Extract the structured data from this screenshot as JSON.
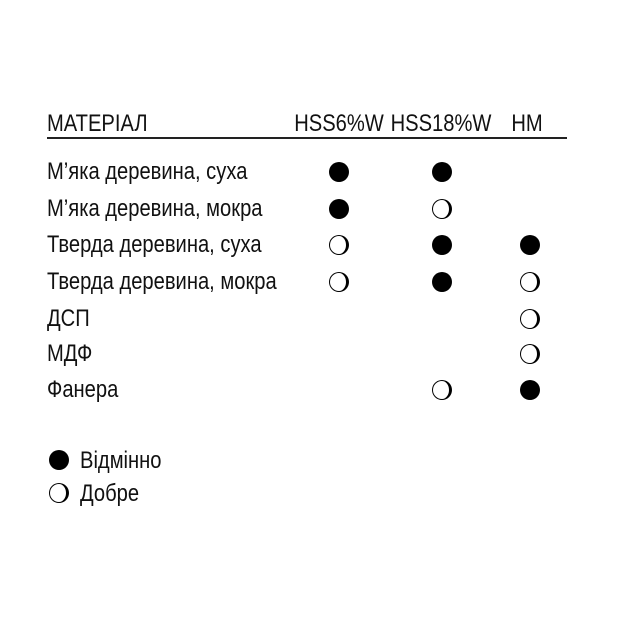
{
  "header": {
    "material": "МАТЕРІАЛ",
    "columns": [
      "HSS6%W",
      "HSS18%W",
      "HM"
    ]
  },
  "rows": [
    {
      "material": "М’яка деревина, суха",
      "ratings": [
        "excellent",
        "excellent",
        ""
      ]
    },
    {
      "material": "М’яка деревина, мокра",
      "ratings": [
        "excellent",
        "good",
        ""
      ]
    },
    {
      "material": "Тверда деревина, суха",
      "ratings": [
        "good",
        "excellent",
        "excellent"
      ]
    },
    {
      "material": "Тверда деревина, мокра",
      "ratings": [
        "good",
        "excellent",
        "good"
      ]
    },
    {
      "material": "ДСП",
      "ratings": [
        "",
        "",
        "good"
      ]
    },
    {
      "material": "МДФ",
      "ratings": [
        "",
        "",
        "good"
      ]
    },
    {
      "material": "Фанера",
      "ratings": [
        "",
        "good",
        "excellent"
      ]
    }
  ],
  "legend": {
    "excellent": "Відмінно",
    "good": "Добре"
  },
  "icons": {
    "excellent": "filled-circle-icon",
    "good": "open-circle-icon"
  }
}
